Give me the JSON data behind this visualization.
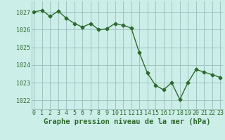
{
  "x": [
    0,
    1,
    2,
    3,
    4,
    5,
    6,
    7,
    8,
    9,
    10,
    11,
    12,
    13,
    14,
    15,
    16,
    17,
    18,
    19,
    20,
    21,
    22,
    23
  ],
  "y": [
    1027.0,
    1027.1,
    1026.75,
    1027.05,
    1026.65,
    1026.35,
    1026.15,
    1026.35,
    1026.0,
    1026.05,
    1026.35,
    1026.25,
    1026.1,
    1024.7,
    1023.55,
    1022.85,
    1022.6,
    1023.0,
    1022.05,
    1023.0,
    1023.75,
    1023.6,
    1023.45,
    1023.3
  ],
  "line_color": "#2d6a2d",
  "marker": "D",
  "markersize": 2.5,
  "linewidth": 1.0,
  "bg_color": "#cceee8",
  "grid_color": "#99bbbb",
  "xlabel": "Graphe pression niveau de la mer (hPa)",
  "xlabel_fontsize": 7.5,
  "xlabel_fontweight": "bold",
  "xlabel_color": "#2d6a2d",
  "tick_color": "#2d6a2d",
  "tick_fontsize": 6.0,
  "ylim": [
    1021.5,
    1027.6
  ],
  "yticks": [
    1022,
    1023,
    1024,
    1025,
    1026,
    1027
  ],
  "xticks": [
    0,
    1,
    2,
    3,
    4,
    5,
    6,
    7,
    8,
    9,
    10,
    11,
    12,
    13,
    14,
    15,
    16,
    17,
    18,
    19,
    20,
    21,
    22,
    23
  ],
  "xlim": [
    -0.3,
    23.3
  ]
}
